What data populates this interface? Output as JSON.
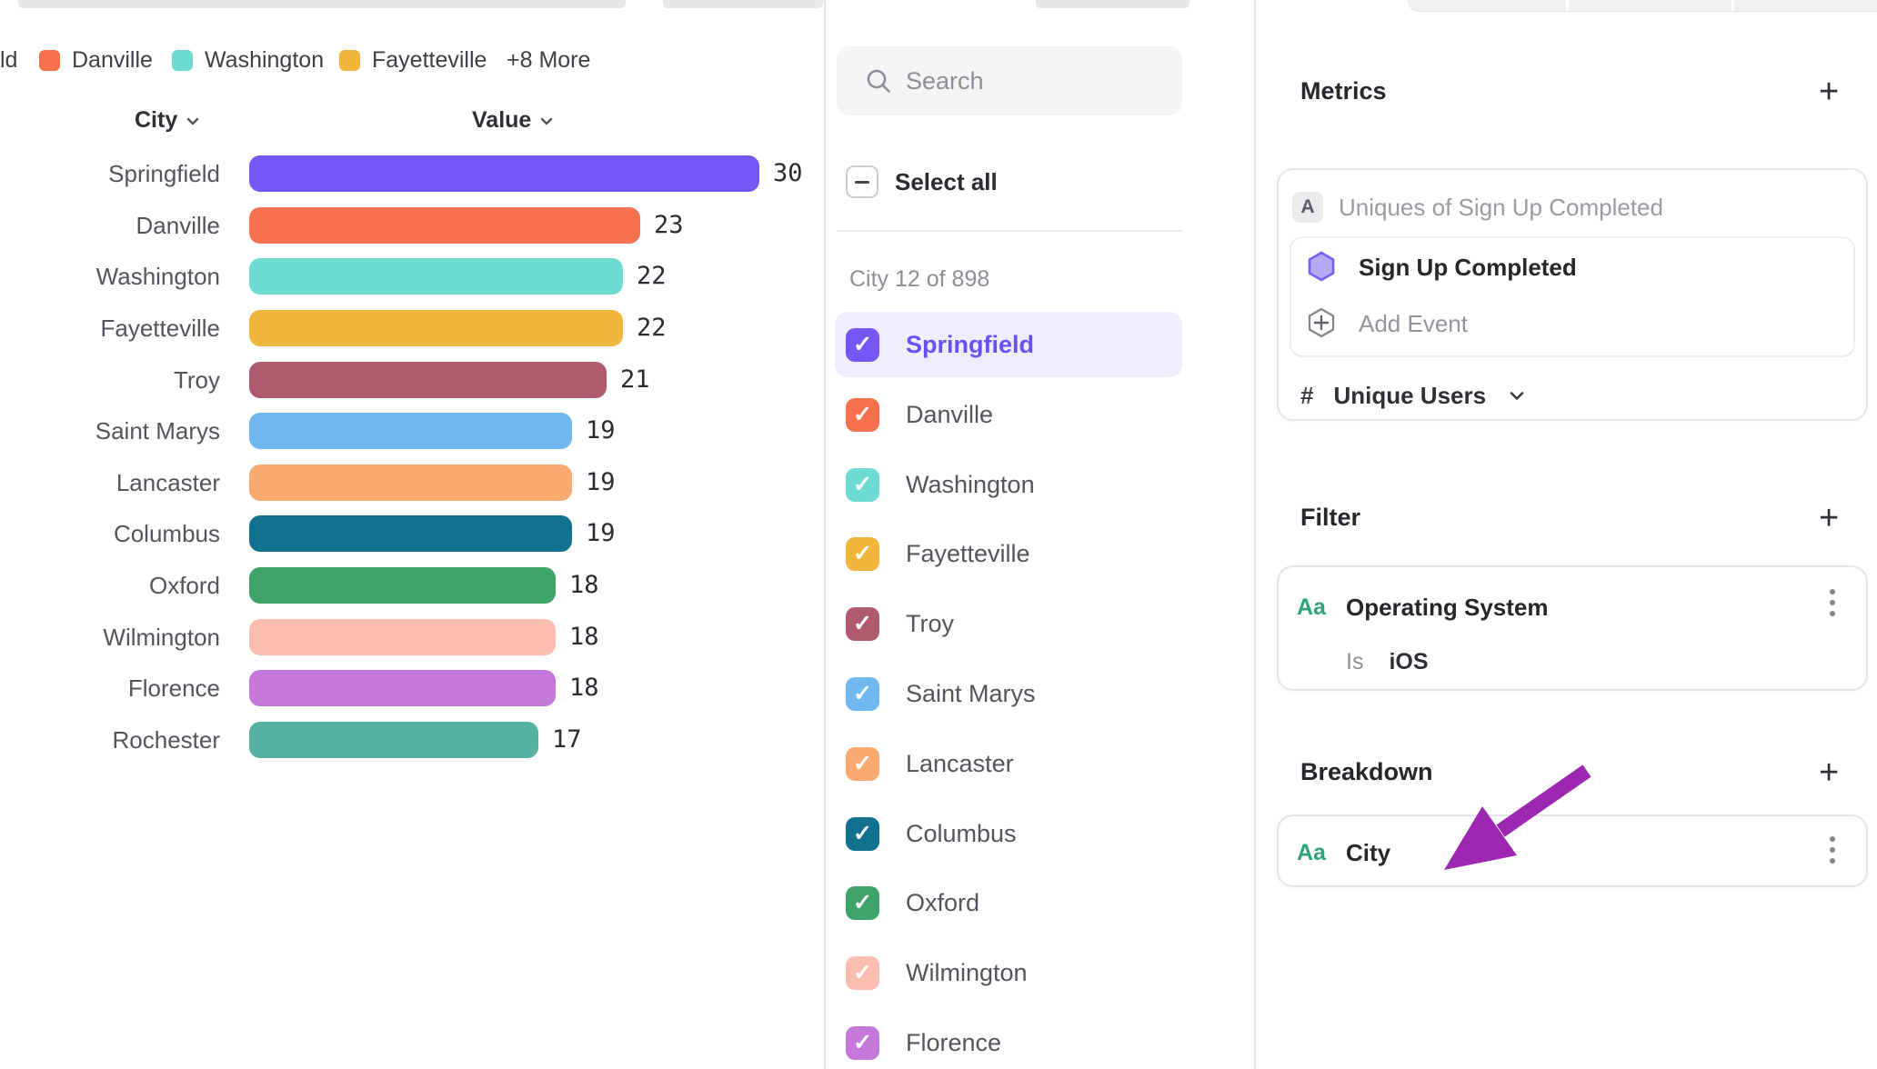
{
  "legend": {
    "clipped_label": "ld",
    "items": [
      {
        "label": "Danville",
        "color": "#f8714f"
      },
      {
        "label": "Washington",
        "color": "#6edcd2"
      },
      {
        "label": "Fayetteville",
        "color": "#f1b63c"
      }
    ],
    "more_label": "+8 More"
  },
  "chart_data": {
    "type": "bar",
    "orientation": "horizontal",
    "columns": {
      "city": "City",
      "value": "Value"
    },
    "categories": [
      "Springfield",
      "Danville",
      "Washington",
      "Fayetteville",
      "Troy",
      "Saint Marys",
      "Lancaster",
      "Columbus",
      "Oxford",
      "Wilmington",
      "Florence",
      "Rochester"
    ],
    "values": [
      30,
      23,
      22,
      22,
      21,
      19,
      19,
      19,
      18,
      18,
      18,
      17
    ],
    "colors": [
      "#7656f5",
      "#f8714f",
      "#6edcd2",
      "#f1b63c",
      "#b05a6e",
      "#6fb9f0",
      "#fbab71",
      "#11718f",
      "#3fa469",
      "#fbbdb0",
      "#c378da",
      "#57b1a3"
    ],
    "xlim": [
      0,
      30
    ],
    "grid": false,
    "value_labels": true
  },
  "picker": {
    "search_placeholder": "Search",
    "select_all_label": "Select all",
    "count_label": "City 12 of 898",
    "items": [
      {
        "label": "Springfield",
        "color": "#7656f5",
        "selected": true
      },
      {
        "label": "Danville",
        "color": "#f8714f",
        "selected": false
      },
      {
        "label": "Washington",
        "color": "#6edcd2",
        "selected": false
      },
      {
        "label": "Fayetteville",
        "color": "#f1b63c",
        "selected": false
      },
      {
        "label": "Troy",
        "color": "#b05a6e",
        "selected": false
      },
      {
        "label": "Saint Marys",
        "color": "#6fb9f0",
        "selected": false
      },
      {
        "label": "Lancaster",
        "color": "#fbab71",
        "selected": false
      },
      {
        "label": "Columbus",
        "color": "#11718f",
        "selected": false
      },
      {
        "label": "Oxford",
        "color": "#3fa469",
        "selected": false
      },
      {
        "label": "Wilmington",
        "color": "#fbbdb0",
        "selected": false
      },
      {
        "label": "Florence",
        "color": "#c378da",
        "selected": false
      }
    ],
    "selected_text_color": "#6950f2",
    "selected_row_bg": "#f0edfe"
  },
  "inspector": {
    "metrics_title": "Metrics",
    "add_symbol": "+",
    "metric_slot_letter": "A",
    "metric_slot_text": "Uniques of Sign Up Completed",
    "event_name": "Sign Up Completed",
    "add_event_label": "Add Event",
    "measure_hash": "#",
    "measure_label": "Unique Users",
    "filter_title": "Filter",
    "filter_prop_icon": "Aa",
    "filter_prop": "Operating System",
    "filter_op": "Is",
    "filter_value": "iOS",
    "breakdown_title": "Breakdown",
    "breakdown_prop_icon": "Aa",
    "breakdown_prop": "City",
    "annotation_arrow_color": "#9c27b0"
  }
}
